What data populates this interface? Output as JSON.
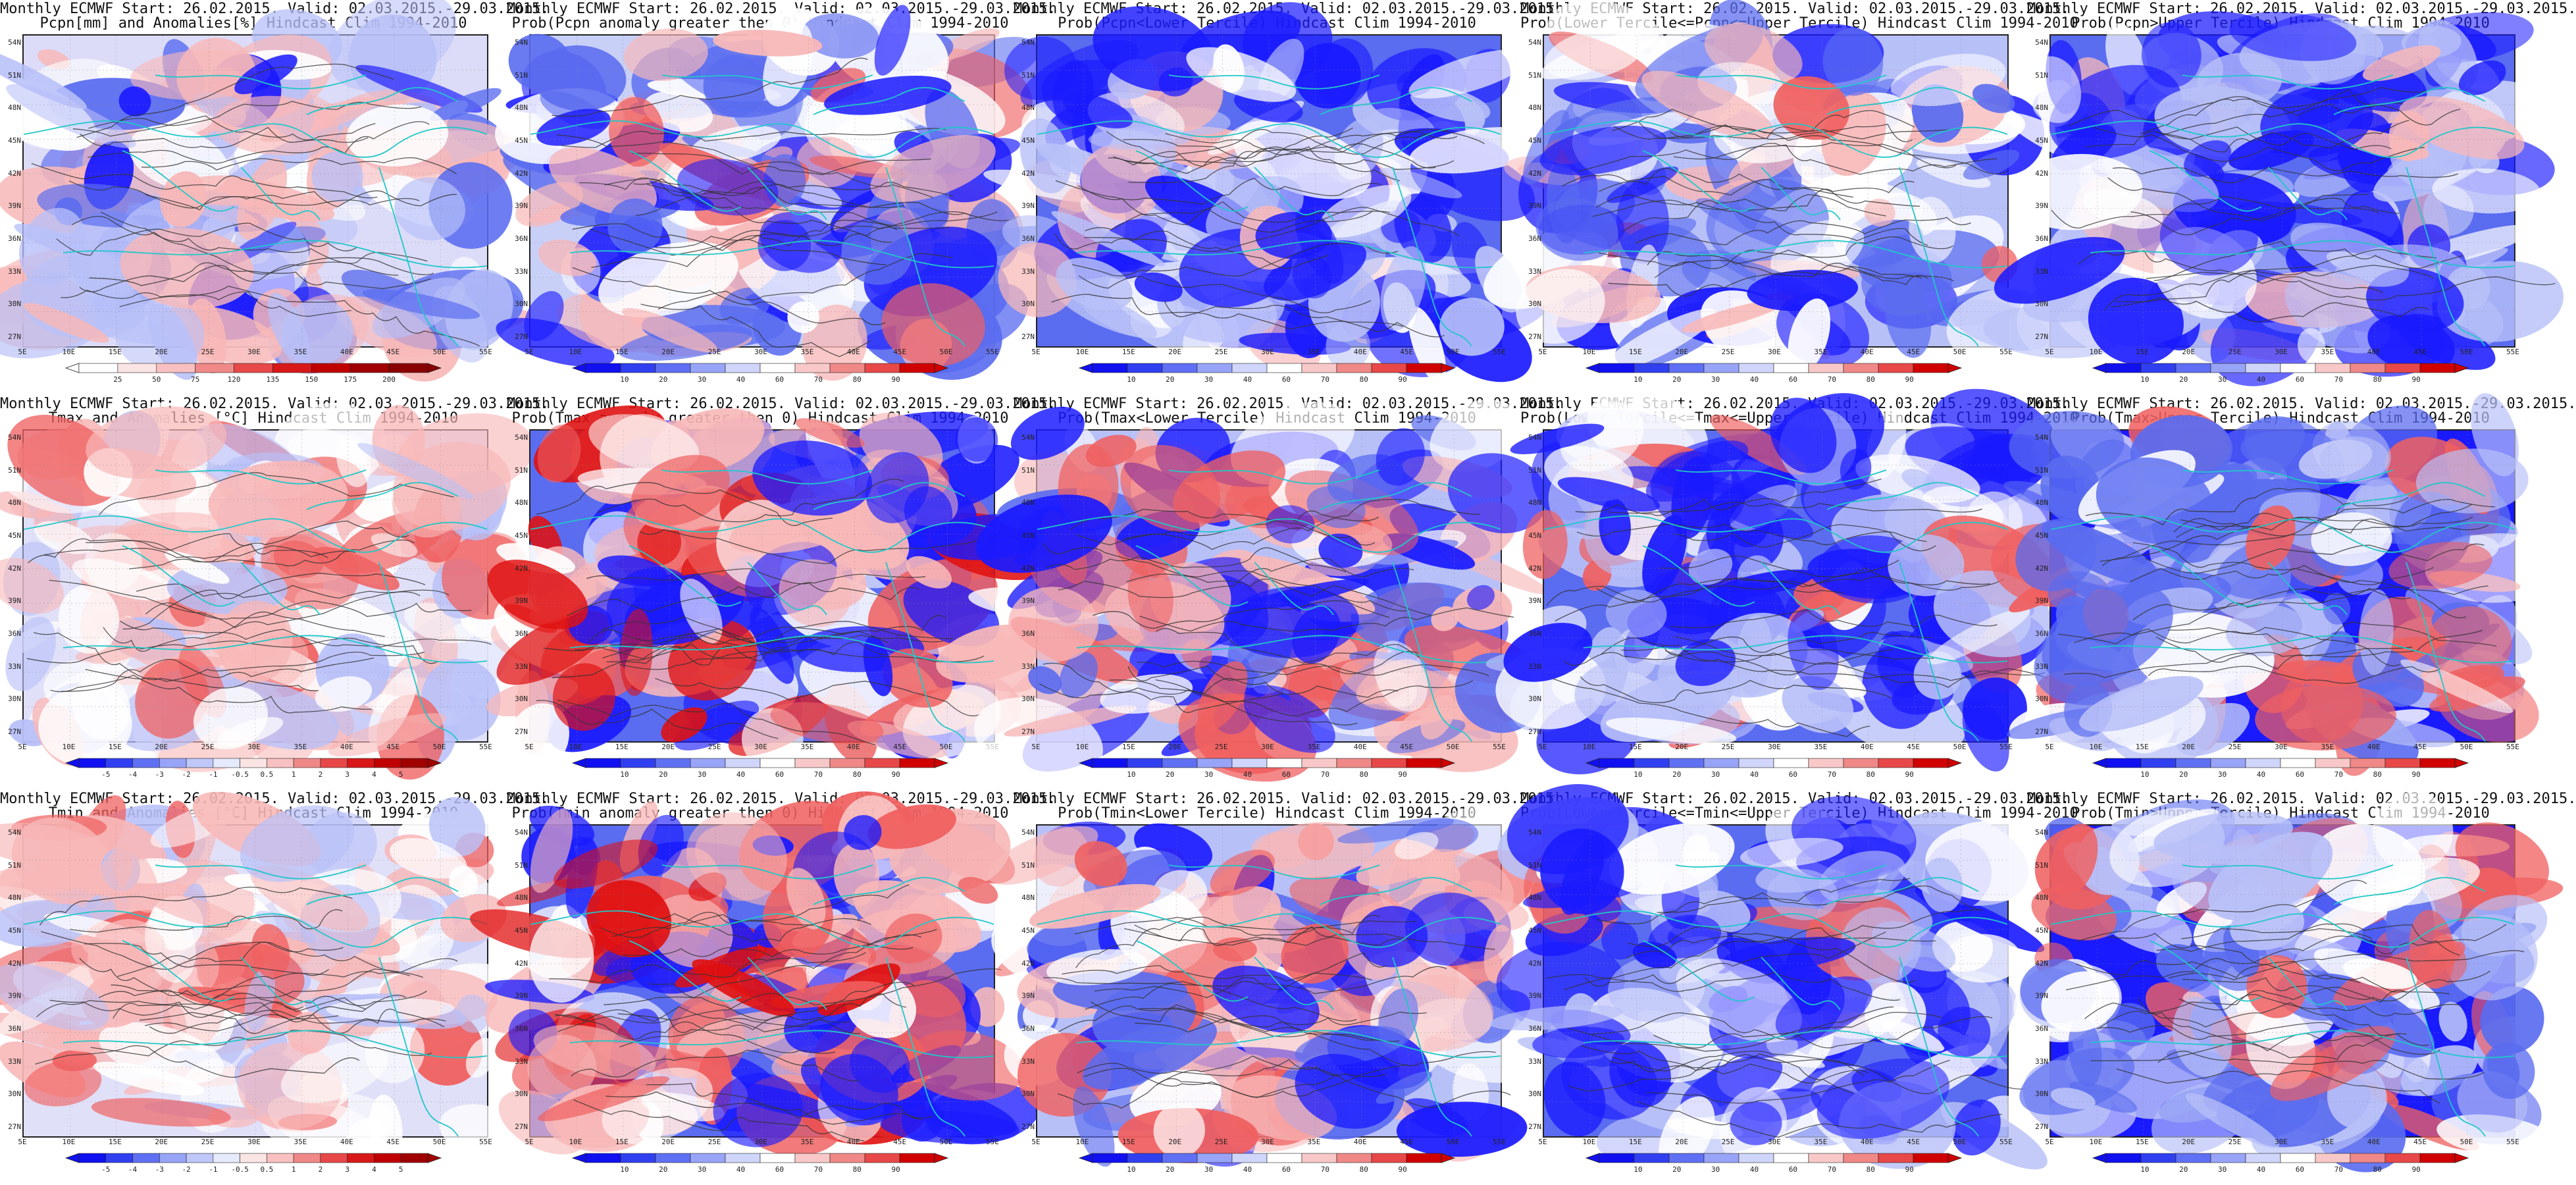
{
  "panels": [
    {
      "line1": "Monthly ECMWF Start: 26.02.2015. Valid: 02.03.2015.-29.03.2015.",
      "line2": "Pcpn[mm] and Anomalies[%] Hindcast Clim 1994-2010",
      "kind": "anom",
      "scale": [
        "25",
        "50",
        "75",
        "120",
        "135",
        "150",
        "175",
        "200"
      ]
    },
    {
      "line1": "Monthly ECMWF Start: 26.02.2015. Valid: 02.03.2015.-29.03.2015.",
      "line2": "Prob(Pcpn anomaly greater then 0) Hindcast Clim 1994-2010",
      "kind": "prob_wet",
      "scale": [
        "10",
        "20",
        "30",
        "40",
        "60",
        "70",
        "80",
        "90"
      ]
    },
    {
      "line1": "Monthly ECMWF Start: 26.02.2015. Valid: 02.03.2015.-29.03.2015.",
      "line2": "Prob(Pcpn<Lower Tercile) Hindcast Clim 1994-2010",
      "kind": "prob_dry",
      "scale": [
        "10",
        "20",
        "30",
        "40",
        "60",
        "70",
        "80",
        "90"
      ]
    },
    {
      "line1": "Monthly ECMWF Start: 26.02.2015. Valid: 02.03.2015.-29.03.2015.",
      "line2": "Prob(Lower Tercile<=Pcpn<=Upper Tercile) Hindcast Clim 1994-2010",
      "kind": "prob_mid",
      "scale": [
        "10",
        "20",
        "30",
        "40",
        "60",
        "70",
        "80",
        "90"
      ]
    },
    {
      "line1": "Monthly ECMWF Start: 26.02.2015. Valid: 02.03.2015.-29.03.2015.",
      "line2": "Prob(Pcpn>Upper Tercile) Hindcast Clim 1994-2010",
      "kind": "prob_up",
      "scale": [
        "10",
        "20",
        "30",
        "40",
        "60",
        "70",
        "80",
        "90"
      ]
    },
    {
      "line1": "Monthly ECMWF Start: 26.02.2015. Valid: 02.03.2015.-29.03.2015.",
      "line2": "Tmax and Anomalies [°C] Hindcast Clim 1994-2010",
      "kind": "tanom",
      "scale": [
        "-5",
        "-4",
        "-3",
        "-2",
        "-1",
        "-0.5",
        "0.5",
        "1",
        "2",
        "3",
        "4",
        "5"
      ]
    },
    {
      "line1": "Monthly ECMWF Start: 26.02.2015. Valid: 02.03.2015.-29.03.2015.",
      "line2": "Prob(Tmax anomaly greater then 0) Hindcast Clim 1994-2010",
      "kind": "t_gt0",
      "scale": [
        "10",
        "20",
        "30",
        "40",
        "60",
        "70",
        "80",
        "90"
      ]
    },
    {
      "line1": "Monthly ECMWF Start: 26.02.2015. Valid: 02.03.2015.-29.03.2015.",
      "line2": "Prob(Tmax<Lower Tercile) Hindcast Clim 1994-2010",
      "kind": "t_low",
      "scale": [
        "10",
        "20",
        "30",
        "40",
        "60",
        "70",
        "80",
        "90"
      ]
    },
    {
      "line1": "Monthly ECMWF Start: 26.02.2015. Valid: 02.03.2015.-29.03.2015.",
      "line2": "Prob(Lower Tercile<=Tmax<=Upper Tercile) Hindcast Clim 1994-2010",
      "kind": "t_mid",
      "scale": [
        "10",
        "20",
        "30",
        "40",
        "60",
        "70",
        "80",
        "90"
      ]
    },
    {
      "line1": "Monthly ECMWF Start: 26.02.2015. Valid: 02.03.2015.-29.03.2015.",
      "line2": "Prob(Tmax>Upper Tercile) Hindcast Clim 1994-2010",
      "kind": "t_up",
      "scale": [
        "10",
        "20",
        "30",
        "40",
        "60",
        "70",
        "80",
        "90"
      ]
    },
    {
      "line1": "Monthly ECMWF Start: 26.02.2015. Valid: 02.03.2015.-29.03.2015.",
      "line2": "Tmin and Anomalies [°C] Hindcast Clim 1994-2010",
      "kind": "tanom",
      "scale": [
        "-5",
        "-4",
        "-3",
        "-2",
        "-1",
        "-0.5",
        "0.5",
        "1",
        "2",
        "3",
        "4",
        "5"
      ]
    },
    {
      "line1": "Monthly ECMWF Start: 26.02.2015. Valid: 02.03.2015.-29.03.2015.",
      "line2": "Prob(Tmin anomaly greater then 0) Hindcast Clim 1994-2010",
      "kind": "t_gt0",
      "scale": [
        "10",
        "20",
        "30",
        "40",
        "60",
        "70",
        "80",
        "90"
      ]
    },
    {
      "line1": "Monthly ECMWF Start: 26.02.2015. Valid: 02.03.2015.-29.03.2015.",
      "line2": "Prob(Tmin<Lower Tercile) Hindcast Clim 1994-2010",
      "kind": "t_low",
      "scale": [
        "10",
        "20",
        "30",
        "40",
        "60",
        "70",
        "80",
        "90"
      ]
    },
    {
      "line1": "Monthly ECMWF Start: 26.02.2015. Valid: 02.03.2015.-29.03.2015.",
      "line2": "Prob(Lower Tercile<=Tmin<=Upper Tercile) Hindcast Clim 1994-2010",
      "kind": "t_mid",
      "scale": [
        "10",
        "20",
        "30",
        "40",
        "60",
        "70",
        "80",
        "90"
      ]
    },
    {
      "line1": "Monthly ECMWF Start: 26.02.2015. Valid: 02.03.2015.-29.03.2015.",
      "line2": "Prob(Tmin>Upper Tercile) Hindcast Clim 1994-2010",
      "kind": "t_up",
      "scale": [
        "10",
        "20",
        "30",
        "40",
        "60",
        "70",
        "80",
        "90"
      ]
    }
  ],
  "latitude_ticks": [
    "54N",
    "51N",
    "48N",
    "45N",
    "42N",
    "39N",
    "36N",
    "33N",
    "30N",
    "27N"
  ],
  "longitude_ticks": [
    "5E",
    "10E",
    "15E",
    "20E",
    "25E",
    "30E",
    "35E",
    "40E",
    "45E",
    "50E",
    "55E"
  ],
  "colors": {
    "deep_blue": "#1a1aff",
    "mid_blue": "#5a6cf0",
    "light_blue": "#b8c0f8",
    "white": "#ffffff",
    "light_red": "#f8b8b8",
    "mid_red": "#f06060",
    "deep_red": "#e01010",
    "coast": "#20c8c8",
    "contour": "#333333"
  }
}
